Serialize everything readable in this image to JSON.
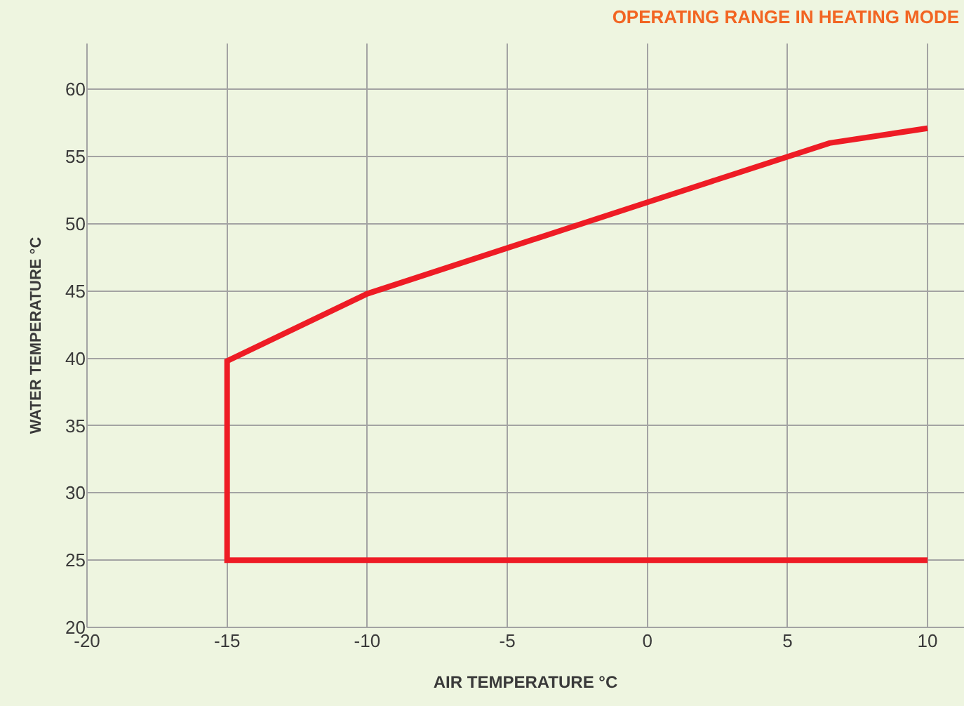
{
  "chart_data": {
    "type": "line",
    "title": "OPERATING RANGE IN HEATING MODE",
    "xlabel": "AIR TEMPERATURE °C",
    "ylabel": "WATER TEMPERATURE °C",
    "x": [
      10,
      -15,
      -15,
      -10,
      0,
      6.5,
      10
    ],
    "series": [
      {
        "color": "#ee1c25",
        "values": [
          25,
          25,
          39.8,
          44.8,
          51.6,
          56,
          57.1
        ]
      }
    ],
    "xlim": [
      -20,
      11.3
    ],
    "xticks": [
      -20,
      -15,
      -10,
      -5,
      0,
      5,
      10
    ],
    "ylim": [
      20,
      63.4
    ],
    "yticks": [
      20,
      25,
      30,
      35,
      40,
      45,
      50,
      55,
      60
    ],
    "grid": true,
    "marker": "none",
    "line_style": "solid"
  }
}
